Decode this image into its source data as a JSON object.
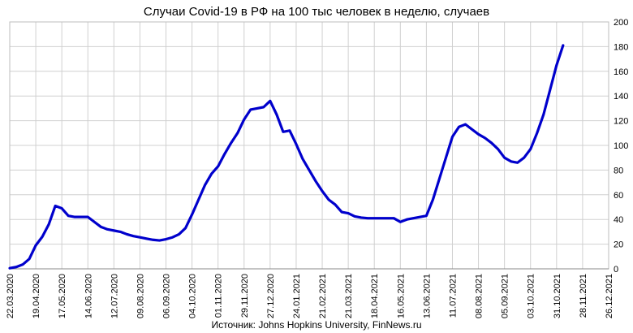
{
  "chart_data": {
    "type": "line",
    "title": "Случаи Covid-19 в РФ на 100 тыс человек в неделю, случаев",
    "xlabel": "",
    "ylabel": "",
    "y_axis_side": "right",
    "ylim": [
      0,
      200
    ],
    "y_ticks": [
      0,
      20,
      40,
      60,
      80,
      100,
      120,
      140,
      160,
      180,
      200
    ],
    "x_range": [
      "2020-03-22",
      "2021-12-26"
    ],
    "x_tick_labels": [
      "22.03.2020",
      "19.04.2020",
      "17.05.2020",
      "14.06.2020",
      "12.07.2020",
      "09.08.2020",
      "06.09.2020",
      "04.10.2020",
      "01.11.2020",
      "29.11.2020",
      "27.12.2020",
      "24.01.2021",
      "21.02.2021",
      "21.03.2021",
      "18.04.2021",
      "16.05.2021",
      "13.06.2021",
      "11.07.2021",
      "08.08.2021",
      "05.09.2021",
      "03.10.2021",
      "31.10.2021",
      "28.11.2021",
      "26.12.2021"
    ],
    "grid": "vertical and horizontal",
    "legend": "none",
    "series": [
      {
        "color": "#0000cc",
        "points": [
          [
            "2020-03-22",
            0.5
          ],
          [
            "2020-03-29",
            1.5
          ],
          [
            "2020-04-05",
            3.5
          ],
          [
            "2020-04-12",
            8
          ],
          [
            "2020-04-19",
            19
          ],
          [
            "2020-04-26",
            26
          ],
          [
            "2020-05-03",
            36
          ],
          [
            "2020-05-10",
            51
          ],
          [
            "2020-05-17",
            49
          ],
          [
            "2020-05-24",
            43
          ],
          [
            "2020-05-31",
            42
          ],
          [
            "2020-06-07",
            42
          ],
          [
            "2020-06-14",
            42
          ],
          [
            "2020-06-21",
            38
          ],
          [
            "2020-06-28",
            34
          ],
          [
            "2020-07-05",
            32
          ],
          [
            "2020-07-12",
            31
          ],
          [
            "2020-07-19",
            30
          ],
          [
            "2020-07-26",
            28
          ],
          [
            "2020-08-02",
            26.5
          ],
          [
            "2020-08-09",
            25.5
          ],
          [
            "2020-08-16",
            24.5
          ],
          [
            "2020-08-23",
            23.5
          ],
          [
            "2020-08-30",
            23
          ],
          [
            "2020-09-06",
            24
          ],
          [
            "2020-09-13",
            25.5
          ],
          [
            "2020-09-20",
            28
          ],
          [
            "2020-09-27",
            33
          ],
          [
            "2020-10-04",
            44
          ],
          [
            "2020-10-11",
            56
          ],
          [
            "2020-10-18",
            68
          ],
          [
            "2020-10-25",
            77
          ],
          [
            "2020-11-01",
            83
          ],
          [
            "2020-11-08",
            93
          ],
          [
            "2020-11-15",
            102
          ],
          [
            "2020-11-22",
            110
          ],
          [
            "2020-11-29",
            121
          ],
          [
            "2020-12-06",
            129
          ],
          [
            "2020-12-13",
            130
          ],
          [
            "2020-12-20",
            131
          ],
          [
            "2020-12-27",
            136
          ],
          [
            "2021-01-03",
            125
          ],
          [
            "2021-01-10",
            111
          ],
          [
            "2021-01-17",
            112
          ],
          [
            "2021-01-24",
            101
          ],
          [
            "2021-01-31",
            89
          ],
          [
            "2021-02-07",
            80
          ],
          [
            "2021-02-14",
            71
          ],
          [
            "2021-02-21",
            63
          ],
          [
            "2021-02-28",
            56
          ],
          [
            "2021-03-07",
            52
          ],
          [
            "2021-03-14",
            46
          ],
          [
            "2021-03-21",
            45
          ],
          [
            "2021-03-28",
            42.5
          ],
          [
            "2021-04-04",
            41.5
          ],
          [
            "2021-04-11",
            41
          ],
          [
            "2021-04-18",
            41
          ],
          [
            "2021-04-25",
            41
          ],
          [
            "2021-05-02",
            41
          ],
          [
            "2021-05-09",
            41
          ],
          [
            "2021-05-16",
            38
          ],
          [
            "2021-05-23",
            40
          ],
          [
            "2021-05-30",
            41
          ],
          [
            "2021-06-06",
            42
          ],
          [
            "2021-06-13",
            43
          ],
          [
            "2021-06-20",
            56
          ],
          [
            "2021-06-27",
            73
          ],
          [
            "2021-07-04",
            90
          ],
          [
            "2021-07-11",
            107
          ],
          [
            "2021-07-18",
            115
          ],
          [
            "2021-07-25",
            117
          ],
          [
            "2021-08-01",
            113
          ],
          [
            "2021-08-08",
            109
          ],
          [
            "2021-08-15",
            106
          ],
          [
            "2021-08-22",
            102
          ],
          [
            "2021-08-29",
            97
          ],
          [
            "2021-09-05",
            90
          ],
          [
            "2021-09-12",
            87
          ],
          [
            "2021-09-19",
            86
          ],
          [
            "2021-09-26",
            90
          ],
          [
            "2021-10-03",
            97
          ],
          [
            "2021-10-10",
            110
          ],
          [
            "2021-10-17",
            125
          ],
          [
            "2021-10-24",
            145
          ],
          [
            "2021-10-31",
            165
          ],
          [
            "2021-11-07",
            181
          ]
        ]
      }
    ]
  },
  "footer": {
    "source": "Источник: Johns Hopkins University, FinNews.ru"
  }
}
